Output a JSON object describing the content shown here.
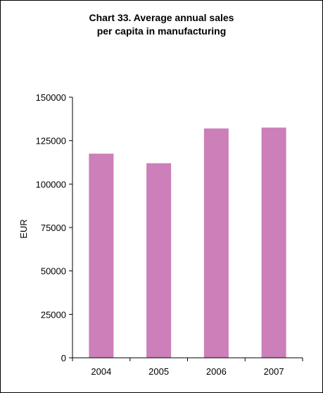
{
  "chart_data": {
    "type": "bar",
    "title_line1": "Chart 33.  Average annual sales",
    "title_line2": "per capita in manufacturing",
    "xlabel": "",
    "ylabel": "EUR",
    "categories": [
      "2004",
      "2005",
      "2006",
      "2007"
    ],
    "values": [
      117500,
      112000,
      132000,
      132500
    ],
    "ylim": [
      0,
      150000
    ],
    "yticks": [
      0,
      25000,
      50000,
      75000,
      100000,
      125000,
      150000
    ],
    "grid": false,
    "legend": "none",
    "bar_color": "#cc7fb8"
  }
}
